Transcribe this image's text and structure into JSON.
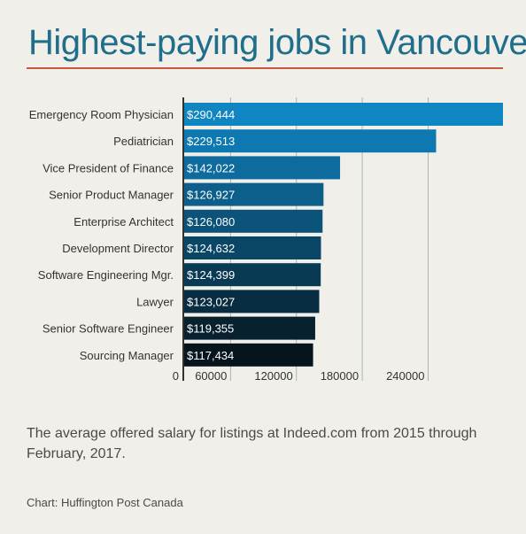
{
  "title": "Highest-paying jobs in Vancouver",
  "caption": "The average offered salary for listings at Indeed.com from 2015 through February, 2017.",
  "source": "Chart: Huffington Post Canada",
  "colors": {
    "title": "#1f6f8b",
    "rule": "#c8583d",
    "bar_start": "#0f85c2",
    "bar_end": "#06141d",
    "grid": "#aeb4b7",
    "axis": "#333333"
  },
  "chart_data": {
    "type": "bar",
    "orientation": "horizontal",
    "title": "Highest-paying jobs in Vancouver",
    "xlabel": "",
    "ylabel": "",
    "xlim": [
      0,
      290444
    ],
    "grid": "vertical",
    "categories": [
      "Emergency Room Physician",
      "Pediatrician",
      "Vice President of Finance",
      "Senior Product Manager",
      "Enterprise Architect",
      "Development Director",
      "Software Engineering Mgr.",
      "Lawyer",
      "Senior Software Engineer",
      "Sourcing Manager"
    ],
    "values": [
      290444,
      229513,
      142022,
      126927,
      126080,
      124632,
      124399,
      123027,
      119355,
      117434
    ],
    "value_labels": [
      "$290,444",
      "$229,513",
      "$142,022",
      "$126,927",
      "$126,080",
      "$124,632",
      "$124,399",
      "$123,027",
      "$119,355",
      "$117,434"
    ],
    "ticks": [
      0,
      60000,
      120000,
      180000,
      240000
    ],
    "tick_labels": [
      "0",
      "60000",
      "120000",
      "180000",
      "240000"
    ]
  }
}
